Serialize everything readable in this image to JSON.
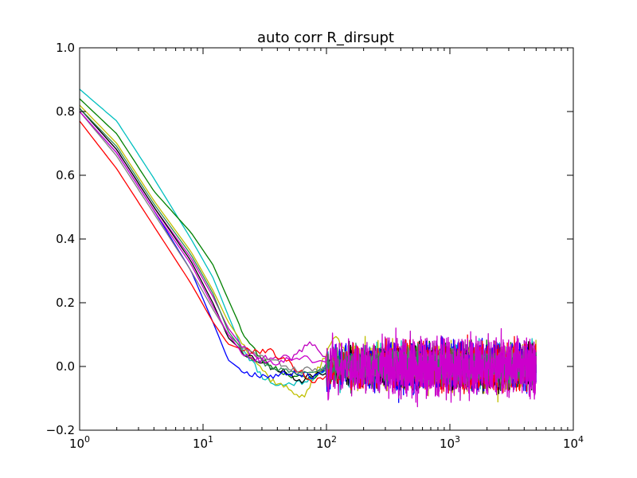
{
  "chart_data": {
    "type": "line",
    "title": "auto corr R_dirsupt",
    "xlabel": "",
    "ylabel": "",
    "xscale": "log",
    "xlim": [
      1,
      10000
    ],
    "ylim": [
      -0.2,
      1.0
    ],
    "x_ticks": [
      {
        "value": 1,
        "base": "10",
        "exp": "0"
      },
      {
        "value": 10,
        "base": "10",
        "exp": "1"
      },
      {
        "value": 100,
        "base": "10",
        "exp": "2"
      },
      {
        "value": 1000,
        "base": "10",
        "exp": "3"
      },
      {
        "value": 10000,
        "base": "10",
        "exp": "4"
      }
    ],
    "y_ticks": [
      {
        "value": -0.2,
        "label": "−0.2"
      },
      {
        "value": 0.0,
        "label": "0.0"
      },
      {
        "value": 0.2,
        "label": "0.2"
      },
      {
        "value": 0.4,
        "label": "0.4"
      },
      {
        "value": 0.6,
        "label": "0.6"
      },
      {
        "value": 0.8,
        "label": "0.8"
      },
      {
        "value": 1.0,
        "label": "1.0"
      }
    ],
    "grid": false,
    "legend": "none",
    "x_end": 5000,
    "series": [
      {
        "color": "#00bfbf",
        "points": [
          [
            1,
            0.87
          ],
          [
            2,
            0.77
          ],
          [
            4,
            0.59
          ],
          [
            8,
            0.4
          ],
          [
            12,
            0.28
          ],
          [
            16,
            0.16
          ],
          [
            20,
            0.07
          ],
          [
            30,
            -0.03
          ],
          [
            40,
            -0.06
          ],
          [
            60,
            -0.05
          ],
          [
            100,
            -0.02
          ]
        ],
        "noise_amp": 0.035,
        "seed": 11
      },
      {
        "color": "#008000",
        "points": [
          [
            1,
            0.84
          ],
          [
            2,
            0.73
          ],
          [
            4,
            0.55
          ],
          [
            8,
            0.42
          ],
          [
            12,
            0.32
          ],
          [
            16,
            0.21
          ],
          [
            22,
            0.09
          ],
          [
            30,
            0.02
          ],
          [
            45,
            -0.02
          ],
          [
            70,
            -0.04
          ],
          [
            100,
            -0.01
          ]
        ],
        "noise_amp": 0.035,
        "seed": 23
      },
      {
        "color": "#bfbf00",
        "points": [
          [
            1,
            0.82
          ],
          [
            2,
            0.7
          ],
          [
            4,
            0.52
          ],
          [
            8,
            0.36
          ],
          [
            12,
            0.24
          ],
          [
            16,
            0.14
          ],
          [
            22,
            0.06
          ],
          [
            35,
            -0.04
          ],
          [
            55,
            -0.08
          ],
          [
            65,
            -0.1
          ],
          [
            80,
            -0.03
          ],
          [
            120,
            0.1
          ],
          [
            150,
            0.02
          ]
        ],
        "noise_amp": 0.04,
        "seed": 37
      },
      {
        "color": "#bf00bf",
        "points": [
          [
            1,
            0.81
          ],
          [
            2,
            0.68
          ],
          [
            4,
            0.5
          ],
          [
            8,
            0.34
          ],
          [
            12,
            0.22
          ],
          [
            16,
            0.12
          ],
          [
            22,
            0.05
          ],
          [
            35,
            0.02
          ],
          [
            55,
            0.03
          ],
          [
            75,
            0.08
          ],
          [
            100,
            0.02
          ]
        ],
        "noise_amp": 0.045,
        "seed": 41
      },
      {
        "color": "#000000",
        "points": [
          [
            1,
            0.81
          ],
          [
            2,
            0.68
          ],
          [
            4,
            0.5
          ],
          [
            8,
            0.33
          ],
          [
            12,
            0.2
          ],
          [
            16,
            0.09
          ],
          [
            22,
            0.04
          ],
          [
            35,
            0.0
          ],
          [
            50,
            -0.02
          ],
          [
            60,
            -0.05
          ],
          [
            70,
            -0.03
          ],
          [
            100,
            -0.02
          ]
        ],
        "noise_amp": 0.035,
        "seed": 53
      },
      {
        "color": "#0000ff",
        "points": [
          [
            1,
            0.8
          ],
          [
            2,
            0.67
          ],
          [
            4,
            0.49
          ],
          [
            8,
            0.3
          ],
          [
            12,
            0.14
          ],
          [
            16,
            0.02
          ],
          [
            22,
            -0.02
          ],
          [
            35,
            -0.03
          ],
          [
            55,
            -0.02
          ],
          [
            80,
            -0.03
          ],
          [
            100,
            -0.01
          ]
        ],
        "noise_amp": 0.04,
        "seed": 67
      },
      {
        "color": "#ff0000",
        "points": [
          [
            1,
            0.77
          ],
          [
            2,
            0.62
          ],
          [
            4,
            0.44
          ],
          [
            8,
            0.26
          ],
          [
            12,
            0.14
          ],
          [
            16,
            0.07
          ],
          [
            22,
            0.05
          ],
          [
            35,
            0.05
          ],
          [
            50,
            0.01
          ],
          [
            80,
            -0.05
          ],
          [
            100,
            -0.03
          ]
        ],
        "noise_amp": 0.04,
        "seed": 79
      },
      {
        "color": "#808080",
        "points": [
          [
            1,
            0.8
          ],
          [
            2,
            0.66
          ],
          [
            4,
            0.48
          ],
          [
            8,
            0.3
          ],
          [
            12,
            0.18
          ],
          [
            16,
            0.1
          ],
          [
            22,
            0.05
          ],
          [
            35,
            0.02
          ],
          [
            55,
            -0.01
          ],
          [
            100,
            -0.01
          ]
        ],
        "noise_amp": 0.03,
        "seed": 83
      },
      {
        "color": "#2e8b57",
        "points": [
          [
            1,
            0.81
          ],
          [
            2,
            0.69
          ],
          [
            4,
            0.51
          ],
          [
            8,
            0.35
          ],
          [
            12,
            0.23
          ],
          [
            16,
            0.11
          ],
          [
            22,
            0.04
          ],
          [
            35,
            0.0
          ],
          [
            55,
            -0.02
          ],
          [
            100,
            0.0
          ]
        ],
        "noise_amp": 0.03,
        "seed": 97
      },
      {
        "color": "#cc00cc",
        "points": [
          [
            1,
            0.8
          ],
          [
            2,
            0.67
          ],
          [
            4,
            0.49
          ],
          [
            8,
            0.32
          ],
          [
            12,
            0.19
          ],
          [
            16,
            0.1
          ],
          [
            22,
            0.03
          ],
          [
            35,
            0.01
          ],
          [
            60,
            0.03
          ],
          [
            100,
            0.01
          ]
        ],
        "noise_amp": 0.05,
        "seed": 101
      }
    ]
  }
}
